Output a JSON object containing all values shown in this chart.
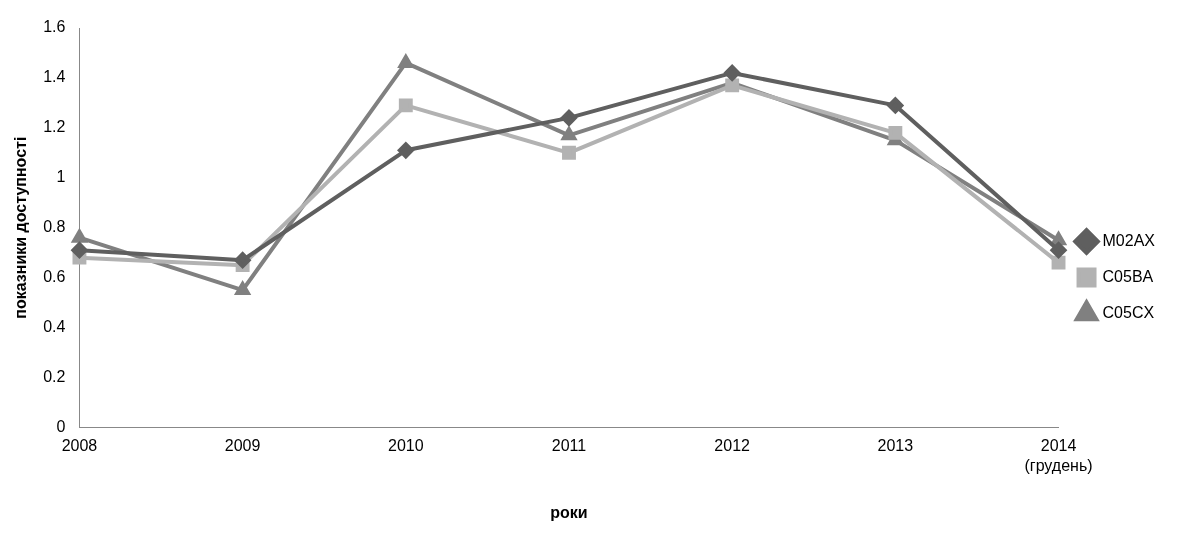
{
  "chart_data": {
    "type": "line",
    "xlabel": "роки",
    "ylabel": "показники доступності",
    "categories": [
      "2008",
      "2009",
      "2010",
      "2011",
      "2012",
      "2013",
      "2014 (грудень)"
    ],
    "ylim": [
      0,
      1.6
    ],
    "yticks": [
      0,
      0.2,
      0.4,
      0.6,
      0.8,
      1,
      1.2,
      1.4,
      1.6
    ],
    "grid": false,
    "legend": "right",
    "series": [
      {
        "name": "M02AX",
        "color": "#5f5f5f",
        "marker": "diamond",
        "values": [
          0.71,
          0.67,
          1.11,
          1.24,
          1.42,
          1.29,
          0.71
        ]
      },
      {
        "name": "C05BA",
        "color": "#b2b2b2",
        "marker": "square",
        "values": [
          0.68,
          0.65,
          1.29,
          1.1,
          1.37,
          1.18,
          0.66
        ]
      },
      {
        "name": "C05CX",
        "color": "#808080",
        "marker": "triangle",
        "values": [
          0.76,
          0.55,
          1.46,
          1.17,
          1.38,
          1.15,
          0.75
        ]
      }
    ]
  }
}
